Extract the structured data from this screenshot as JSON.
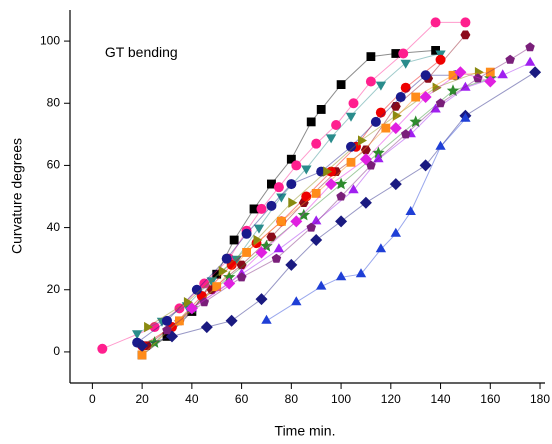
{
  "chart_data": {
    "type": "line",
    "annotation": "GT bending",
    "x_label": "Time min.",
    "y_label": "Curvature degrees",
    "xlim": [
      -9,
      182
    ],
    "ylim": [
      -10,
      110
    ],
    "xticks": [
      0,
      20,
      40,
      60,
      80,
      100,
      120,
      140,
      160,
      180
    ],
    "yticks": [
      0,
      20,
      40,
      60,
      80,
      100
    ],
    "series": [
      {
        "color": "#000000",
        "marker": "square",
        "x": [
          20,
          30,
          40,
          50,
          57,
          65,
          72,
          80,
          88,
          92,
          100,
          112,
          122,
          138
        ],
        "values": [
          -1,
          5,
          13,
          25,
          36,
          46,
          54,
          62,
          74,
          78,
          86,
          95,
          96,
          97
        ]
      },
      {
        "color": "#ff1f8e",
        "marker": "circle",
        "x": [
          4,
          25,
          35,
          45,
          55,
          62,
          68,
          75,
          82,
          90,
          98,
          105,
          112,
          125,
          138,
          150
        ],
        "values": [
          1,
          8,
          14,
          22,
          30,
          39,
          46,
          53,
          60,
          67,
          73,
          80,
          87,
          96,
          106,
          106
        ]
      },
      {
        "color": "#2a8c8c",
        "marker": "triangle-down",
        "x": [
          18,
          28,
          38,
          48,
          58,
          67,
          76,
          86,
          96,
          104,
          116,
          126,
          140
        ],
        "values": [
          6,
          10,
          15,
          23,
          30,
          40,
          50,
          59,
          69,
          76,
          86,
          93,
          96
        ]
      },
      {
        "color": "#8b0a1a",
        "marker": "hexagon",
        "x": [
          22,
          35,
          48,
          60,
          72,
          85,
          98,
          110,
          122,
          135,
          150
        ],
        "values": [
          2,
          10,
          20,
          28,
          37,
          48,
          58,
          65,
          79,
          88,
          102
        ]
      },
      {
        "color": "#ee0000",
        "marker": "circle",
        "x": [
          20,
          32,
          44,
          56,
          66,
          76,
          86,
          96,
          106,
          116,
          126,
          140
        ],
        "values": [
          2,
          8,
          18,
          28,
          35,
          42,
          50,
          58,
          66,
          77,
          85,
          94
        ]
      },
      {
        "color": "#1a1a8c",
        "marker": "circle",
        "x": [
          18,
          30,
          42,
          54,
          62,
          72,
          80,
          92,
          104,
          114,
          124,
          134,
          146
        ],
        "values": [
          3,
          10,
          20,
          30,
          38,
          47,
          54,
          58,
          66,
          74,
          82,
          89,
          89
        ]
      },
      {
        "color": "#2e8b2e",
        "marker": "star",
        "x": [
          25,
          40,
          55,
          70,
          85,
          100,
          115,
          130,
          145,
          160
        ],
        "values": [
          3,
          14,
          24,
          34,
          44,
          54,
          64,
          74,
          84,
          88
        ]
      },
      {
        "color": "#8a8a10",
        "marker": "triangle-right",
        "x": [
          22,
          38,
          52,
          66,
          80,
          94,
          108,
          122,
          138,
          155
        ],
        "values": [
          8,
          16,
          26,
          36,
          48,
          58,
          68,
          76,
          85,
          90
        ]
      },
      {
        "color": "#ff8c1a",
        "marker": "square",
        "x": [
          20,
          35,
          50,
          62,
          76,
          90,
          104,
          118,
          130,
          145,
          160
        ],
        "values": [
          -1,
          10,
          21,
          32,
          42,
          51,
          61,
          72,
          82,
          89,
          90
        ]
      },
      {
        "color": "#1a1a80",
        "marker": "diamond",
        "x": [
          20,
          32,
          46,
          56,
          68,
          80,
          90,
          100,
          110,
          122,
          134,
          150,
          178
        ],
        "values": [
          2,
          5,
          8,
          10,
          17,
          28,
          36,
          42,
          48,
          54,
          60,
          76,
          90
        ]
      },
      {
        "color": "#1f3fd6",
        "marker": "triangle-up",
        "x": [
          70,
          82,
          92,
          100,
          108,
          116,
          122,
          128,
          140,
          150
        ],
        "values": [
          10,
          16,
          21,
          24,
          25,
          33,
          38,
          45,
          66,
          75
        ]
      },
      {
        "color": "#a020f0",
        "marker": "triangle-up",
        "x": [
          40,
          60,
          75,
          90,
          105,
          115,
          128,
          138,
          150,
          165,
          176
        ],
        "values": [
          14,
          25,
          33,
          42,
          52,
          62,
          70,
          78,
          85,
          89,
          93
        ]
      },
      {
        "color": "#7a1f7a",
        "marker": "pentagon",
        "x": [
          30,
          45,
          60,
          74,
          88,
          100,
          112,
          126,
          140,
          155,
          168,
          176
        ],
        "values": [
          7,
          16,
          24,
          30,
          40,
          50,
          60,
          70,
          80,
          88,
          94,
          98
        ]
      },
      {
        "color": "#e020e0",
        "marker": "diamond",
        "x": [
          40,
          55,
          68,
          82,
          96,
          110,
          122,
          134,
          148,
          160
        ],
        "values": [
          14,
          22,
          32,
          42,
          54,
          62,
          72,
          82,
          90,
          87
        ]
      }
    ]
  }
}
